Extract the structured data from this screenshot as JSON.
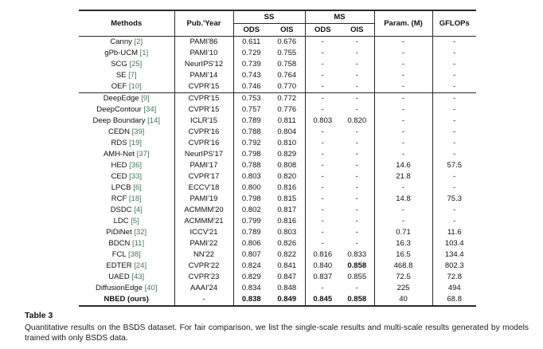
{
  "colors": {
    "citation": "#3c7a56",
    "rule": "#2a2a2a"
  },
  "caption": {
    "label": "Table 3",
    "text": "Quantitative results on the BSDS dataset. For fair comparison, we list the single-scale results and multi-scale results generated by models trained with only BSDS data."
  },
  "chart_data": {
    "type": "table",
    "header": {
      "methods": "Methods",
      "pub_year": "Pub.'Year",
      "ss": "SS",
      "ms": "MS",
      "ods": "ODS",
      "ois": "OIS",
      "params": "Param. (M)",
      "gflops": "GFLOPs"
    },
    "group_breaks": [
      5
    ],
    "rows": [
      [
        "Canny [2]",
        "PAMI'86",
        "0.611",
        "0.676",
        "-",
        "-",
        "-",
        "-"
      ],
      [
        "gPb-UCM [1]",
        "PAMI'10",
        "0.729",
        "0.755",
        "-",
        "-",
        "-",
        "-"
      ],
      [
        "SCG [25]",
        "NeurIPS'12",
        "0.739",
        "0.758",
        "-",
        "-",
        "-",
        "-"
      ],
      [
        "SE [7]",
        "PAMI'14",
        "0.743",
        "0.764",
        "-",
        "-",
        "-",
        "-"
      ],
      [
        "OEF [10]",
        "CVPR'15",
        "0.746",
        "0.770",
        "-",
        "-",
        "-",
        "-"
      ],
      [
        "DeepEdge [9]",
        "CVPR'15",
        "0.753",
        "0.772",
        "-",
        "-",
        "-",
        "-"
      ],
      [
        "DeepContour [34]",
        "CVPR'15",
        "0.757",
        "0.776",
        "-",
        "-",
        "-",
        "-"
      ],
      [
        "Deep Boundary [14]",
        "ICLR'15",
        "0.789",
        "0.811",
        "0.803",
        "0.820",
        "-",
        "-"
      ],
      [
        "CEDN [39]",
        "CVPR'16",
        "0.788",
        "0.804",
        "-",
        "-",
        "-",
        "-"
      ],
      [
        "RDS [19]",
        "CVPR'16",
        "0.792",
        "0.810",
        "-",
        "-",
        "-",
        "-"
      ],
      [
        "AMH-Net [37]",
        "NeurIPS'17",
        "0.798",
        "0.829",
        "-",
        "-",
        "-",
        "-"
      ],
      [
        "HED [36]",
        "PAMI'17",
        "0.788",
        "0.808",
        "-",
        "-",
        "14.6",
        "57.5"
      ],
      [
        "CED [33]",
        "CVPR'17",
        "0.803",
        "0.820",
        "-",
        "-",
        "21.8",
        "-"
      ],
      [
        "LPCB [6]",
        "ECCV'18",
        "0.800",
        "0.816",
        "-",
        "-",
        "-",
        "-"
      ],
      [
        "RCF [18]",
        "PAMI'19",
        "0.798",
        "0.815",
        "-",
        "-",
        "14.8",
        "75.3"
      ],
      [
        "DSDC [4]",
        "ACMMM'20",
        "0.802",
        "0.817",
        "-",
        "-",
        "-",
        "-"
      ],
      [
        "LDC [5]",
        "ACMMM'21",
        "0.799",
        "0.816",
        "-",
        "-",
        "-",
        "-"
      ],
      [
        "PiDiNet [32]",
        "ICCV'21",
        "0.789",
        "0.803",
        "-",
        "-",
        "0.71",
        "11.6"
      ],
      [
        "BDCN [11]",
        "PAMI'22",
        "0.806",
        "0.826",
        "-",
        "-",
        "16.3",
        "103.4"
      ],
      [
        "FCL [38]",
        "NN'22",
        "0.807",
        "0.822",
        "0.816",
        "0.833",
        "16.5",
        "134.4"
      ],
      [
        "EDTER [24]",
        "CVPR'22",
        "0.824",
        "0.841",
        "0.840",
        "**0.858**",
        "468.8",
        "802.3"
      ],
      [
        "UAED [43]",
        "CVPR'23",
        "0.829",
        "0.847",
        "0.837",
        "0.855",
        "72.5",
        "72.8"
      ],
      [
        "DiffusionEdge [40]",
        "AAAI'24",
        "0.834",
        "0.848",
        "-",
        "-",
        "225",
        "494"
      ],
      [
        "**NBED (ours)**",
        "-",
        "**0.838**",
        "**0.849**",
        "**0.845**",
        "**0.858**",
        "40",
        "68.8"
      ]
    ]
  }
}
